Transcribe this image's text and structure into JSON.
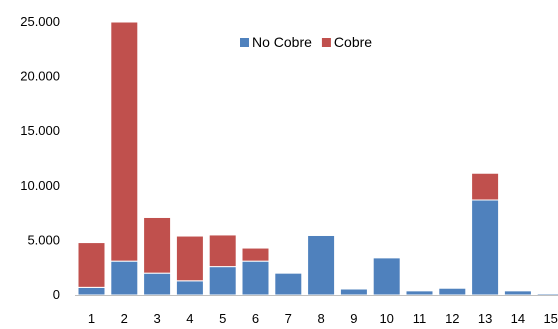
{
  "chart_data": {
    "type": "bar",
    "stacked": true,
    "categories": [
      "1",
      "2",
      "3",
      "4",
      "5",
      "6",
      "7",
      "8",
      "9",
      "10",
      "11",
      "12",
      "13",
      "14",
      "15"
    ],
    "series": [
      {
        "name": "No Cobre",
        "color": "#4F81BD",
        "values": [
          700,
          3100,
          2000,
          1300,
          2600,
          3100,
          2000,
          5450,
          550,
          3400,
          380,
          620,
          8700,
          380,
          130
        ]
      },
      {
        "name": "Cobre",
        "color": "#C0504D",
        "values": [
          4100,
          21900,
          5100,
          4100,
          2900,
          1200,
          0,
          0,
          0,
          0,
          0,
          0,
          2450,
          0,
          0
        ]
      }
    ],
    "ylim": [
      0,
      25000
    ],
    "yticks": [
      0,
      5000,
      10000,
      15000,
      20000,
      25000
    ],
    "ytick_labels": [
      "0",
      "5.000",
      "10.000",
      "15.000",
      "20.000",
      "25.000"
    ],
    "grid": false,
    "legend": "top-center",
    "title": "",
    "xlabel": "",
    "ylabel": ""
  }
}
